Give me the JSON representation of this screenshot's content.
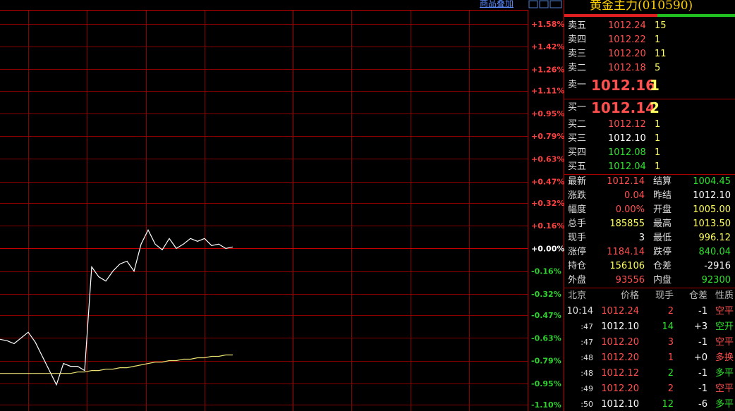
{
  "toolbar": {
    "overlay_link": "商品叠加"
  },
  "chart_data": {
    "type": "line",
    "ylim": [
      -1.1,
      1.58
    ],
    "yticks": [
      {
        "value": 1.58,
        "label": "+1.58%"
      },
      {
        "value": 1.42,
        "label": "+1.42%"
      },
      {
        "value": 1.26,
        "label": "+1.26%"
      },
      {
        "value": 1.11,
        "label": "+1.11%"
      },
      {
        "value": 0.95,
        "label": "+0.95%"
      },
      {
        "value": 0.79,
        "label": "+0.79%"
      },
      {
        "value": 0.63,
        "label": "+0.63%"
      },
      {
        "value": 0.47,
        "label": "+0.47%"
      },
      {
        "value": 0.32,
        "label": "+0.32%"
      },
      {
        "value": 0.16,
        "label": "+0.16%"
      },
      {
        "value": 0,
        "label": "+0.00%"
      },
      {
        "value": -0.16,
        "label": "-0.16%"
      },
      {
        "value": -0.32,
        "label": "-0.32%"
      },
      {
        "value": -0.47,
        "label": "-0.47%"
      },
      {
        "value": -0.63,
        "label": "-0.63%"
      },
      {
        "value": -0.79,
        "label": "-0.79%"
      },
      {
        "value": -0.95,
        "label": "-0.95%"
      },
      {
        "value": -1.1,
        "label": "-1.10%"
      }
    ],
    "grid": true,
    "series": [
      {
        "color": "#ffffff",
        "values": [
          -0.64,
          -0.65,
          -0.67,
          -0.63,
          -0.59,
          -0.66,
          -0.76,
          -0.86,
          -0.96,
          -0.81,
          -0.83,
          -0.83,
          -0.86,
          -0.13,
          -0.2,
          -0.23,
          -0.16,
          -0.11,
          -0.09,
          -0.16,
          0.03,
          0.13,
          0.03,
          -0.01,
          0.07,
          0.0,
          0.03,
          0.07,
          0.05,
          0.07,
          0.02,
          0.03,
          0.0,
          0.01
        ]
      },
      {
        "color": "#e8e070",
        "values": [
          -0.88,
          -0.88,
          -0.88,
          -0.88,
          -0.88,
          -0.88,
          -0.88,
          -0.88,
          -0.88,
          -0.88,
          -0.88,
          -0.87,
          -0.87,
          -0.86,
          -0.86,
          -0.85,
          -0.85,
          -0.84,
          -0.84,
          -0.83,
          -0.82,
          -0.81,
          -0.8,
          -0.8,
          -0.79,
          -0.79,
          -0.78,
          -0.78,
          -0.77,
          -0.77,
          -0.76,
          -0.76,
          -0.75,
          -0.75
        ]
      }
    ]
  },
  "quote": {
    "title": "黄金主力(010590)",
    "asks": [
      {
        "label": "卖五",
        "price": "1012.24",
        "volume": "15",
        "color": "#ff5050"
      },
      {
        "label": "卖四",
        "price": "1012.22",
        "volume": "1",
        "color": "#ff5050"
      },
      {
        "label": "卖三",
        "price": "1012.20",
        "volume": "11",
        "color": "#ff5050"
      },
      {
        "label": "卖二",
        "price": "1012.18",
        "volume": "5",
        "color": "#ff5050"
      },
      {
        "label": "卖一",
        "price": "1012.16",
        "volume": "1",
        "color": "#ff5050"
      }
    ],
    "bids": [
      {
        "label": "买一",
        "price": "1012.14",
        "volume": "2",
        "color": "#ff5050"
      },
      {
        "label": "买二",
        "price": "1012.12",
        "volume": "1",
        "color": "#ff5050"
      },
      {
        "label": "买三",
        "price": "1012.10",
        "volume": "1",
        "color": "#ffffff"
      },
      {
        "label": "买四",
        "price": "1012.08",
        "volume": "1",
        "color": "#30e030"
      },
      {
        "label": "买五",
        "price": "1012.04",
        "volume": "1",
        "color": "#30e030"
      }
    ],
    "stats": [
      [
        {
          "label": "最新",
          "value": "1012.14",
          "color": "#ff5050"
        },
        {
          "label": "结算",
          "value": "1004.45",
          "color": "#30e030"
        }
      ],
      [
        {
          "label": "涨跌",
          "value": "0.04",
          "color": "#ff5050"
        },
        {
          "label": "昨结",
          "value": "1012.10",
          "color": "#ffffff"
        }
      ],
      [
        {
          "label": "幅度",
          "value": "0.00%",
          "color": "#ff5050"
        },
        {
          "label": "开盘",
          "value": "1005.00",
          "color": "#ffff60"
        }
      ],
      [
        {
          "label": "总手",
          "value": "185855",
          "color": "#ffff60"
        },
        {
          "label": "最高",
          "value": "1013.50",
          "color": "#ffff60"
        }
      ],
      [
        {
          "label": "现手",
          "value": "3",
          "color": "#ffffff"
        },
        {
          "label": "最低",
          "value": "996.12",
          "color": "#ffff60"
        }
      ],
      [
        {
          "label": "涨停",
          "value": "1184.14",
          "color": "#ff5050"
        },
        {
          "label": "跌停",
          "value": "840.04",
          "color": "#30e030"
        }
      ],
      [
        {
          "label": "持仓",
          "value": "156106",
          "color": "#ffff60"
        },
        {
          "label": "仓差",
          "value": "-2916",
          "color": "#ffffff"
        }
      ],
      [
        {
          "label": "外盘",
          "value": "93556",
          "color": "#ff5050"
        },
        {
          "label": "内盘",
          "value": "92300",
          "color": "#30e030"
        }
      ]
    ],
    "trades_header": [
      "北京",
      "价格",
      "现手",
      "仓差",
      "性质"
    ],
    "trades": [
      {
        "time": "10:14",
        "price": "1012.24",
        "volume": "2",
        "oi": "-1",
        "nature": "空平",
        "pc": "#ff5050",
        "vc": "#ff5050",
        "nc": "#ff5050"
      },
      {
        "time": ":47",
        "price": "1012.10",
        "volume": "14",
        "oi": "+3",
        "nature": "空开",
        "pc": "#ffffff",
        "vc": "#30e030",
        "nc": "#30e030"
      },
      {
        "time": ":47",
        "price": "1012.20",
        "volume": "3",
        "oi": "-1",
        "nature": "空平",
        "pc": "#ff5050",
        "vc": "#ff5050",
        "nc": "#ff5050"
      },
      {
        "time": ":48",
        "price": "1012.20",
        "volume": "1",
        "oi": "+0",
        "nature": "多换",
        "pc": "#ff5050",
        "vc": "#ff5050",
        "nc": "#ff5050"
      },
      {
        "time": ":48",
        "price": "1012.12",
        "volume": "2",
        "oi": "-1",
        "nature": "多平",
        "pc": "#ff5050",
        "vc": "#30e030",
        "nc": "#30e030"
      },
      {
        "time": ":49",
        "price": "1012.20",
        "volume": "2",
        "oi": "-1",
        "nature": "空平",
        "pc": "#ff5050",
        "vc": "#ff5050",
        "nc": "#ff5050"
      },
      {
        "time": ":50",
        "price": "1012.10",
        "volume": "12",
        "oi": "-6",
        "nature": "多平",
        "pc": "#ffffff",
        "vc": "#30e030",
        "nc": "#30e030"
      }
    ]
  }
}
